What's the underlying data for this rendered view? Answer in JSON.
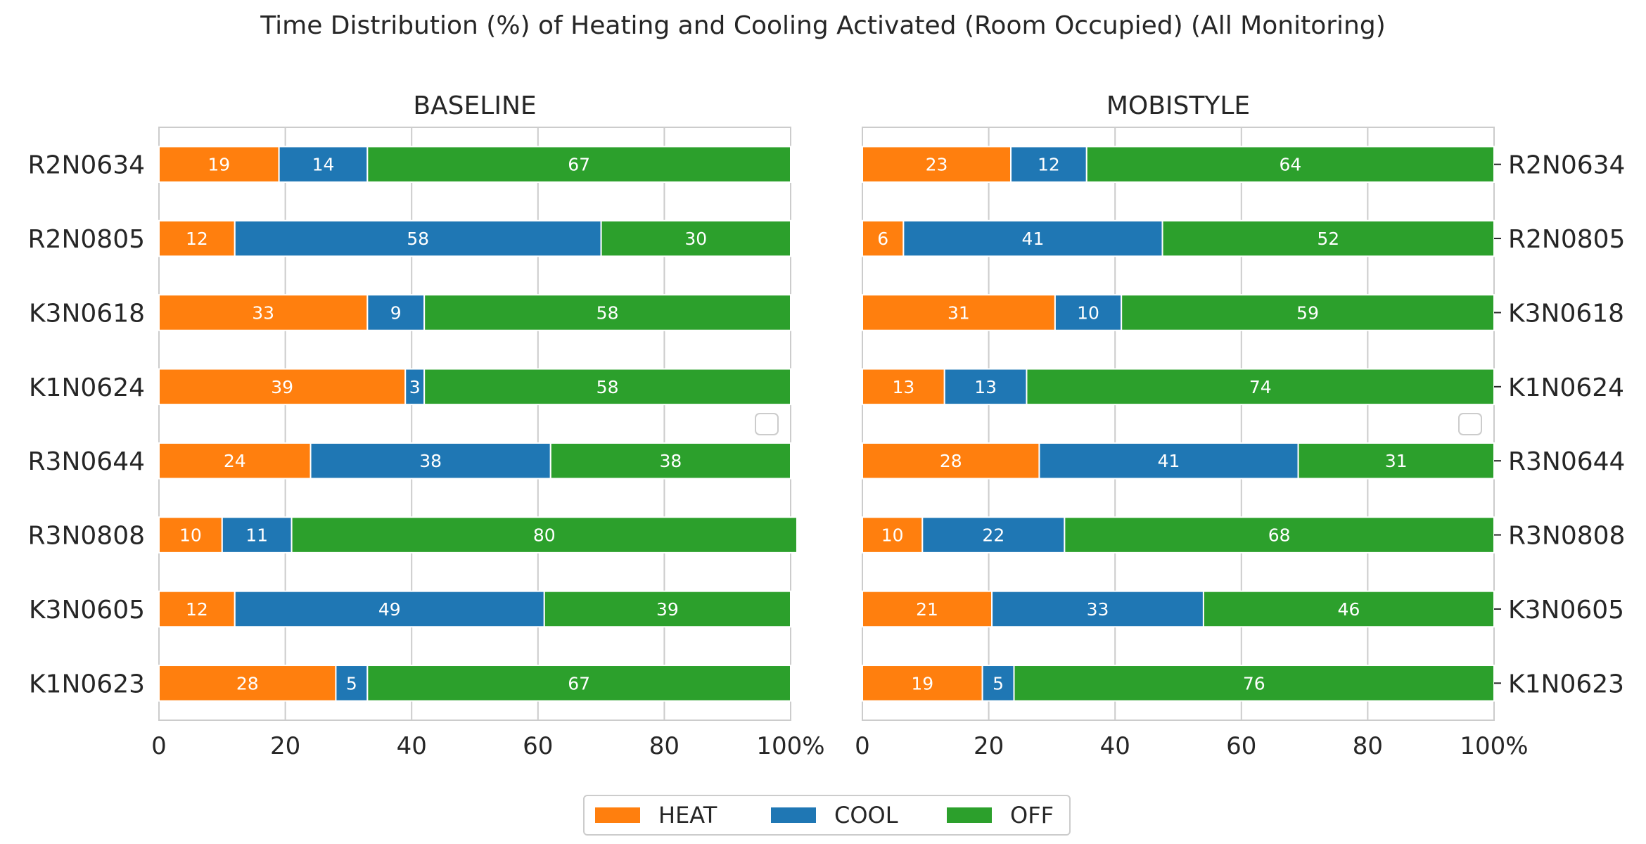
{
  "figure": {
    "title": "Time Distribution (%) of Heating and Cooling Activated (Room Occupied) (All Monitoring)"
  },
  "legend": {
    "items": [
      {
        "label": "HEAT",
        "color": "#ff7f0e"
      },
      {
        "label": "COOL",
        "color": "#1f77b4"
      },
      {
        "label": "OFF",
        "color": "#2ca02c"
      }
    ]
  },
  "chart_data": [
    {
      "type": "bar",
      "orientation": "horizontal",
      "stacked": true,
      "title": "BASELINE",
      "xlim": [
        0,
        100
      ],
      "x_ticks": [
        "0",
        "20",
        "40",
        "60",
        "80",
        "100%"
      ],
      "categories": [
        "R2N0634",
        "R2N0805",
        "K3N0618",
        "K1N0624",
        "R3N0644",
        "R3N0808",
        "K3N0605",
        "K1N0623"
      ],
      "series": [
        {
          "name": "HEAT",
          "values": [
            19,
            12,
            33,
            39,
            24,
            10,
            12,
            28
          ]
        },
        {
          "name": "COOL",
          "values": [
            14,
            58,
            9,
            3,
            38,
            11,
            49,
            5
          ]
        },
        {
          "name": "OFF",
          "values": [
            67,
            30,
            58,
            58,
            38,
            80,
            39,
            67
          ]
        }
      ],
      "label_values": [
        [
          "19",
          "14",
          "67"
        ],
        [
          "12",
          "58",
          "30"
        ],
        [
          "33",
          "9",
          "58"
        ],
        [
          "39",
          "3",
          "58"
        ],
        [
          "24",
          "38",
          "38"
        ],
        [
          "10",
          "11",
          "80"
        ],
        [
          "12",
          "49",
          "39"
        ],
        [
          "28",
          "5",
          "67"
        ]
      ],
      "grid": true,
      "ytick_side": "left"
    },
    {
      "type": "bar",
      "orientation": "horizontal",
      "stacked": true,
      "title": "MOBISTYLE",
      "xlim": [
        0,
        100
      ],
      "x_ticks": [
        "0",
        "20",
        "40",
        "60",
        "80",
        "100%"
      ],
      "categories": [
        "R2N0634",
        "R2N0805",
        "K3N0618",
        "K1N0624",
        "R3N0644",
        "R3N0808",
        "K3N0605",
        "K1N0623"
      ],
      "series": [
        {
          "name": "HEAT",
          "values": [
            23.5,
            6.5,
            30.5,
            13,
            28,
            9.5,
            20.5,
            19
          ]
        },
        {
          "name": "COOL",
          "values": [
            12,
            41,
            10.5,
            13,
            41,
            22.5,
            33.5,
            5
          ]
        },
        {
          "name": "OFF",
          "values": [
            64.5,
            52.5,
            59,
            74,
            31,
            68,
            46,
            76
          ]
        }
      ],
      "label_values": [
        [
          "23",
          "12",
          "64"
        ],
        [
          "6",
          "41",
          "52"
        ],
        [
          "31",
          "10",
          "59"
        ],
        [
          "13",
          "13",
          "74"
        ],
        [
          "28",
          "41",
          "31"
        ],
        [
          "10",
          "22",
          "68"
        ],
        [
          "21",
          "33",
          "46"
        ],
        [
          "19",
          "5",
          "76"
        ]
      ],
      "grid": true,
      "ytick_side": "right"
    }
  ]
}
